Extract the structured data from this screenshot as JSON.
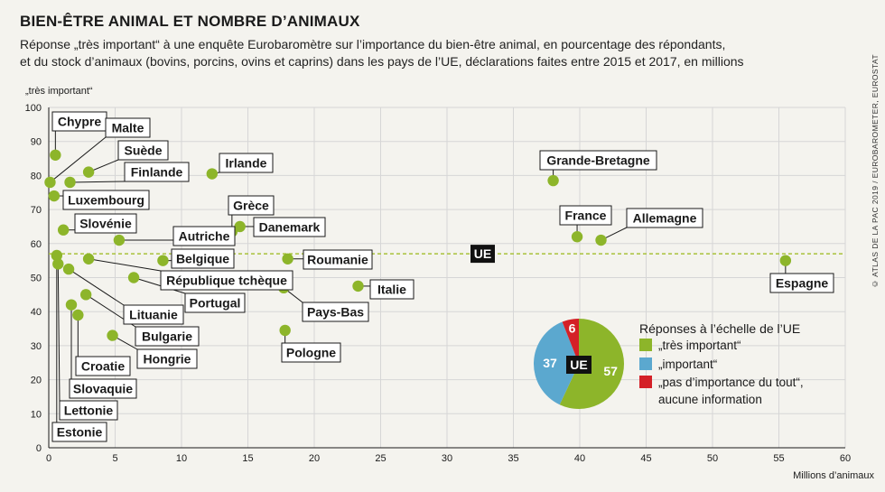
{
  "title": "BIEN-ÊTRE ANIMAL ET NOMBRE D’ANIMAUX",
  "subtitle_line1": "Réponse „très important“ à une enquête Eurobaromètre sur l’importance du bien-être animal, en pourcentage des répondants,",
  "subtitle_line2": "et du stock d’animaux (bovins, porcins, ovins et caprins) dans les pays de l’UE, déclarations faites entre 2015 et 2017, en millions",
  "source": "© ATLAS DE LA PAC 2019 / EUROBAROMETER, EUROSTAT",
  "colors": {
    "point": "#8db52a",
    "important": "#5ba8cf",
    "not_important": "#d42027",
    "ue_line": "#a8c23a",
    "grid": "#d6d6d6"
  },
  "chart_data": {
    "type": "scatter",
    "ylabel": "„très important“",
    "xlabel": "Millions d’animaux",
    "xlim": [
      0,
      60
    ],
    "ylim": [
      0,
      100
    ],
    "x_ticks": [
      0,
      5,
      10,
      15,
      20,
      25,
      30,
      35,
      40,
      45,
      50,
      55,
      60
    ],
    "y_ticks": [
      0,
      10,
      20,
      30,
      40,
      50,
      60,
      70,
      80,
      90,
      100
    ],
    "grid": true,
    "ue_reference": {
      "label": "UE",
      "value": 57
    },
    "points": [
      {
        "label": "Chypre",
        "x": 0.5,
        "y": 86
      },
      {
        "label": "Malte",
        "x": 0.1,
        "y": 78
      },
      {
        "label": "Suède",
        "x": 3.0,
        "y": 81
      },
      {
        "label": "Finlande",
        "x": 1.6,
        "y": 78
      },
      {
        "label": "Irlande",
        "x": 12.3,
        "y": 80.5
      },
      {
        "label": "Luxembourg",
        "x": 0.4,
        "y": 74
      },
      {
        "label": "Slovénie",
        "x": 1.1,
        "y": 64
      },
      {
        "label": "Grèce",
        "x": 13.8,
        "y": 63.5
      },
      {
        "label": "Danemark",
        "x": 14.4,
        "y": 65
      },
      {
        "label": "Autriche",
        "x": 5.3,
        "y": 61
      },
      {
        "label": "Belgique",
        "x": 8.6,
        "y": 55
      },
      {
        "label": "République tchèque",
        "x": 3.0,
        "y": 55.5
      },
      {
        "label": "Roumanie",
        "x": 18.0,
        "y": 55.5
      },
      {
        "label": "Estonie",
        "x": 0.6,
        "y": 56.5
      },
      {
        "label": "Lettonie",
        "x": 0.7,
        "y": 54
      },
      {
        "label": "Portugal",
        "x": 6.4,
        "y": 50
      },
      {
        "label": "Lituanie",
        "x": 1.5,
        "y": 52.5
      },
      {
        "label": "Pays-Bas",
        "x": 17.7,
        "y": 47
      },
      {
        "label": "Italie",
        "x": 23.3,
        "y": 47.5
      },
      {
        "label": "Bulgarie",
        "x": 2.8,
        "y": 45
      },
      {
        "label": "Slovaquie",
        "x": 1.7,
        "y": 42
      },
      {
        "label": "Croatie",
        "x": 2.2,
        "y": 39
      },
      {
        "label": "Hongrie",
        "x": 4.8,
        "y": 33
      },
      {
        "label": "Pologne",
        "x": 17.8,
        "y": 34.5
      },
      {
        "label": "Grande-Bretagne",
        "x": 38.0,
        "y": 78.5
      },
      {
        "label": "France",
        "x": 39.8,
        "y": 62
      },
      {
        "label": "Allemagne",
        "x": 41.6,
        "y": 61
      },
      {
        "label": "Espagne",
        "x": 55.5,
        "y": 55
      }
    ],
    "pie": {
      "center_label": "UE",
      "title": "Réponses à l’échelle de l’UE",
      "slices": [
        {
          "name": "„très important“",
          "value": 57,
          "color": "#8db52a"
        },
        {
          "name": "„important“",
          "value": 37,
          "color": "#5ba8cf"
        },
        {
          "name": "„pas d’importance du tout“,",
          "name_line2": "aucune information",
          "value": 6,
          "color": "#d42027"
        }
      ]
    }
  }
}
